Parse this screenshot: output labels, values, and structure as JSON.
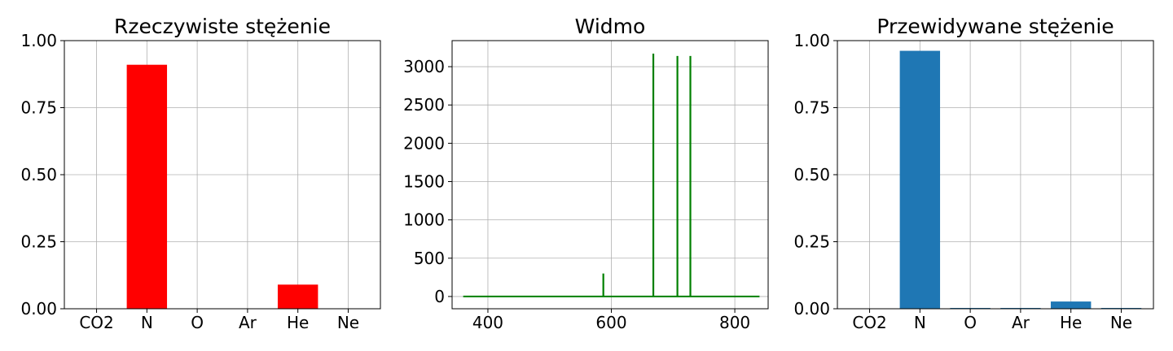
{
  "chart_data": [
    {
      "type": "bar",
      "title": "Rzeczywiste stężenie",
      "xlabel": "",
      "ylabel": "",
      "categories": [
        "CO2",
        "N",
        "O",
        "Ar",
        "He",
        "Ne"
      ],
      "values": [
        0,
        0.91,
        0,
        0,
        0.09,
        0
      ],
      "ylim": [
        0,
        1.0
      ],
      "yticks": [
        "0.00",
        "0.25",
        "0.50",
        "0.75",
        "1.00"
      ],
      "color": "#ff0000",
      "grid": true
    },
    {
      "type": "line",
      "title": "Widmo",
      "xlabel": "",
      "ylabel": "",
      "xlim": [
        342,
        854
      ],
      "ylim": [
        -160,
        3340
      ],
      "xticks": [
        "400",
        "600",
        "800"
      ],
      "yticks": [
        "0",
        "500",
        "1000",
        "1500",
        "2000",
        "2500",
        "3000"
      ],
      "color": "#008000",
      "grid": true,
      "baseline": {
        "x": [
          360,
          840
        ],
        "y": 0
      },
      "peaks": [
        {
          "x": 587,
          "y": 300
        },
        {
          "x": 668,
          "y": 3170
        },
        {
          "x": 707,
          "y": 3140
        },
        {
          "x": 728,
          "y": 3140
        }
      ]
    },
    {
      "type": "bar",
      "title": "Przewidywane stężenie",
      "xlabel": "",
      "ylabel": "",
      "categories": [
        "CO2",
        "N",
        "O",
        "Ar",
        "He",
        "Ne"
      ],
      "values": [
        0.0,
        0.962,
        0.003,
        0.003,
        0.027,
        0.003
      ],
      "ylim": [
        0,
        1.0
      ],
      "yticks": [
        "0.00",
        "0.25",
        "0.50",
        "0.75",
        "1.00"
      ],
      "color": "#1f77b4",
      "grid": true
    }
  ]
}
